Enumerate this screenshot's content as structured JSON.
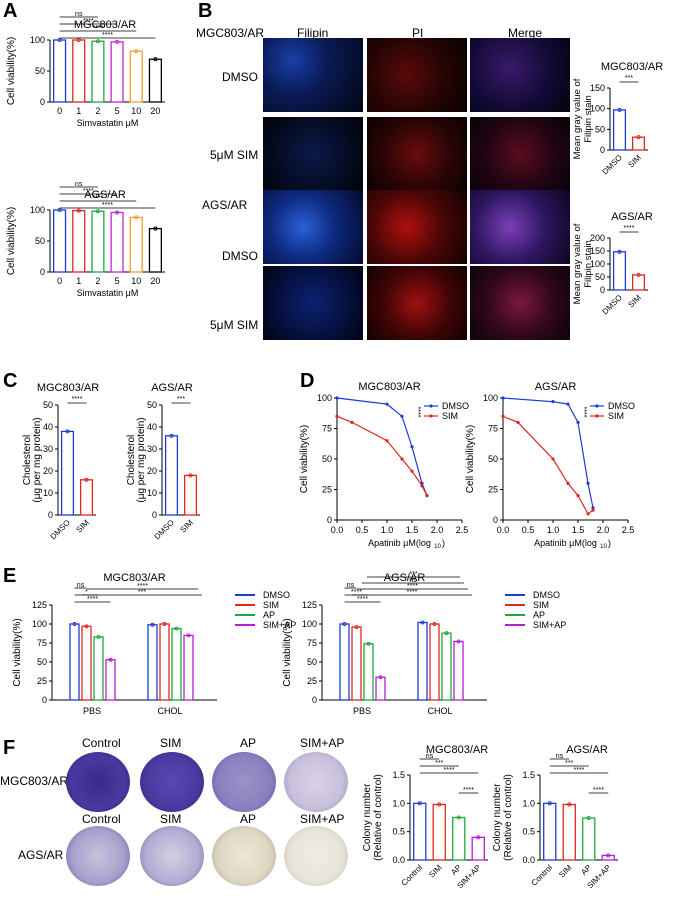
{
  "panel_letters": {
    "A": "A",
    "B": "B",
    "C": "C",
    "D": "D",
    "E": "E",
    "F": "F"
  },
  "colors": {
    "blue": "#1f3bd6",
    "red": "#e0261f",
    "green": "#1ea83a",
    "orange": "#f0a030",
    "purple": "#b21fd6",
    "black": "#000000",
    "magenta": "#c02ad0"
  },
  "panel_A": {
    "xlabel": "Simvastatin μM",
    "ylabel": "Cell viability(%)",
    "categories": [
      "0",
      "1",
      "2",
      "5",
      "10",
      "20"
    ],
    "charts": [
      {
        "title": "MGC803/AR",
        "values": [
          100,
          100,
          98,
          97,
          82,
          69
        ],
        "sig": [
          "ns",
          "****",
          "****",
          "****"
        ]
      },
      {
        "title": "AGS/AR",
        "values": [
          100,
          99,
          98,
          96,
          88,
          70
        ],
        "sig": [
          "ns",
          "****",
          "****",
          "****"
        ]
      }
    ],
    "ylim": [
      0,
      100
    ],
    "yticks": [
      "0",
      "50",
      "100"
    ]
  },
  "panel_B": {
    "row_titles": [
      "MGC803/AR",
      "AGS/AR"
    ],
    "col_headers": [
      "Filipin",
      "PI",
      "Merge"
    ],
    "row_labels": [
      "DMSO",
      "5μM SIM",
      "DMSO",
      "5μM SIM"
    ],
    "bar_charts": [
      {
        "title": "MGC803/AR",
        "ylabel": "Mean gray value of\nFilipin stain",
        "categories": [
          "DMSO",
          "SIM"
        ],
        "values": [
          97,
          31
        ],
        "ylim": [
          0,
          150
        ],
        "yticks": [
          "0",
          "50",
          "100",
          "150"
        ],
        "sig": "***"
      },
      {
        "title": "AGS/AR",
        "ylabel": "Mean gray value of\nFilipin stain",
        "categories": [
          "DMSO",
          "SIM"
        ],
        "values": [
          147,
          58
        ],
        "ylim": [
          0,
          200
        ],
        "yticks": [
          "0",
          "50",
          "100",
          "150",
          "200"
        ],
        "sig": "****"
      }
    ]
  },
  "panel_C": {
    "ylabel": "Cholesterol\n(μg per mg protein)",
    "categories": [
      "DMSO",
      "SIM"
    ],
    "charts": [
      {
        "title": "MGC803/AR",
        "values": [
          38,
          16
        ],
        "sig": "****"
      },
      {
        "title": "AGS/AR",
        "values": [
          36,
          18
        ],
        "sig": "***"
      }
    ],
    "ylim": [
      0,
      50
    ],
    "yticks": [
      "0",
      "10",
      "20",
      "30",
      "40",
      "50"
    ]
  },
  "panel_D": {
    "ylabel": "Cell viability(%)",
    "xlabel": "Apatinib μM(log",
    "xlabel_sub": "10",
    "xticks": [
      "0.0",
      "0.5",
      "1.0",
      "1.5",
      "2.0",
      "2.5"
    ],
    "yticks": [
      "0",
      "25",
      "50",
      "75",
      "100"
    ],
    "legend": [
      "DMSO",
      "SIM"
    ],
    "sig": "****",
    "charts": [
      {
        "title": "MGC803/AR",
        "series": [
          {
            "name": "DMSO",
            "x": [
              0,
              1.0,
              1.3,
              1.5,
              1.7,
              1.8
            ],
            "y": [
              100,
              95,
              85,
              60,
              30,
              20
            ]
          },
          {
            "name": "SIM",
            "x": [
              0,
              0.3,
              1.0,
              1.3,
              1.5,
              1.7,
              1.8
            ],
            "y": [
              85,
              80,
              65,
              50,
              40,
              28,
              20
            ]
          }
        ]
      },
      {
        "title": "AGS/AR",
        "series": [
          {
            "name": "DMSO",
            "x": [
              0,
              1.0,
              1.3,
              1.5,
              1.7,
              1.8
            ],
            "y": [
              100,
              97,
              95,
              80,
              30,
              10
            ]
          },
          {
            "name": "SIM",
            "x": [
              0,
              0.3,
              1.0,
              1.3,
              1.5,
              1.7,
              1.8
            ],
            "y": [
              85,
              80,
              50,
              30,
              20,
              5,
              8
            ]
          }
        ]
      }
    ]
  },
  "panel_E": {
    "ylabel": "Cell viability(%)",
    "groups": [
      "PBS",
      "CHOL"
    ],
    "legend": [
      "DMSO",
      "SIM",
      "AP",
      "SIM+AP"
    ],
    "yticks": [
      "0",
      "25",
      "50",
      "75",
      "100",
      "125"
    ],
    "ylim": [
      0,
      125
    ],
    "charts": [
      {
        "title": "MGC803/AR",
        "values": [
          [
            100,
            97,
            83,
            53
          ],
          [
            99,
            100,
            94,
            85
          ]
        ],
        "sig_left": [
          "ns",
          "*",
          "****"
        ],
        "sig_top": [
          "***",
          "****"
        ]
      },
      {
        "title": "AGS/AR",
        "values": [
          [
            100,
            96,
            74,
            30
          ],
          [
            102,
            100,
            88,
            77
          ]
        ],
        "sig_left": [
          "ns",
          "****",
          "****"
        ],
        "sig_top": [
          "****",
          "****",
          "ns",
          "***"
        ]
      }
    ]
  },
  "panel_F": {
    "col_headers": [
      "Control",
      "SIM",
      "AP",
      "SIM+AP"
    ],
    "row_labels": [
      "MGC803/AR",
      "AGS/AR"
    ],
    "ylabel": "Colony number\n(Relative of control)",
    "categories": [
      "Control",
      "SIM",
      "AP",
      "SIM+AP"
    ],
    "yticks": [
      "0.0",
      "0.5",
      "1.0",
      "1.5"
    ],
    "ylim": [
      0,
      1.5
    ],
    "charts": [
      {
        "title": "MGC803/AR",
        "values": [
          1.0,
          0.98,
          0.75,
          0.4
        ],
        "sig": [
          "ns",
          "***",
          "****",
          "****"
        ]
      },
      {
        "title": "AGS/AR",
        "values": [
          1.0,
          0.98,
          0.74,
          0.08
        ],
        "sig": [
          "ns",
          "***",
          "****",
          "****"
        ]
      }
    ]
  }
}
